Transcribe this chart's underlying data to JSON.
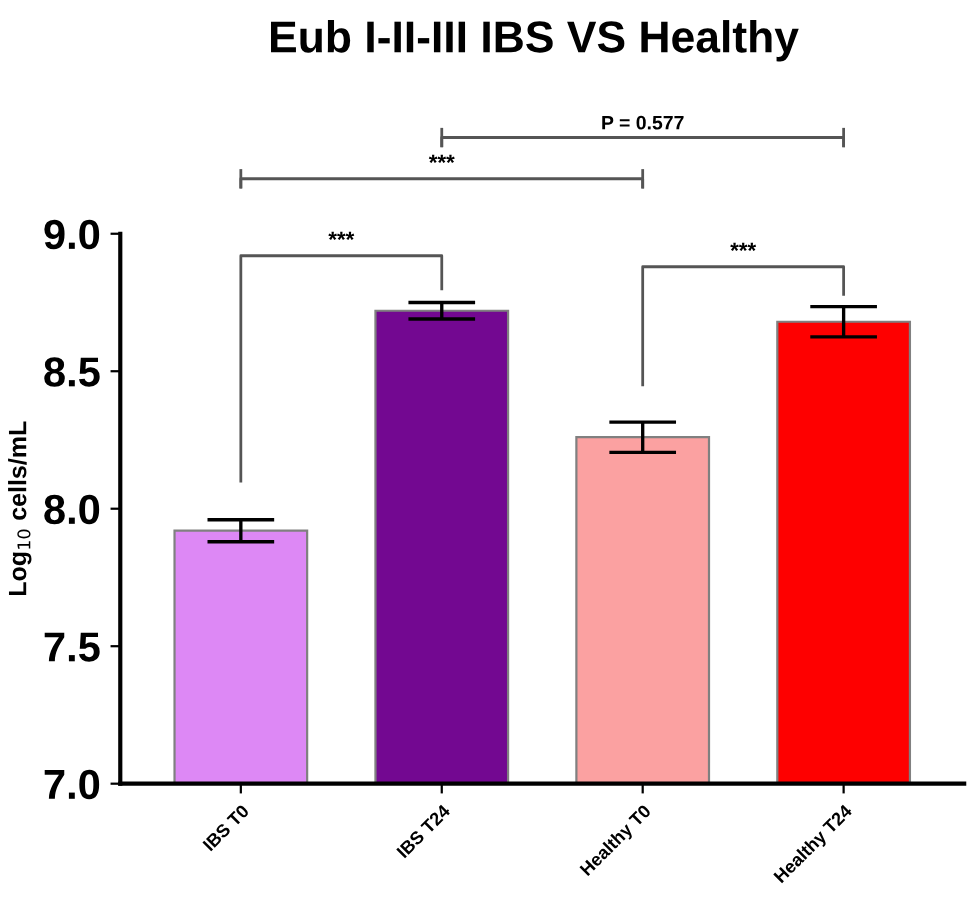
{
  "chart_data": {
    "type": "bar",
    "title": "Eub I-II-III IBS VS Healthy",
    "ylabel": "Log$_{10}$ cells/mL",
    "categories": [
      "IBS T0",
      "IBS T24",
      "Healthy T0",
      "Healthy T24"
    ],
    "values": [
      7.92,
      8.72,
      8.26,
      8.68
    ],
    "errors": [
      0.04,
      0.03,
      0.055,
      0.055
    ],
    "colors": [
      "#dd88f5",
      "#730891",
      "#fba1a1",
      "#fe0000"
    ],
    "ylim": [
      7.0,
      9.0
    ],
    "yticks": [
      {
        "value": 7.0,
        "label": "7.0"
      },
      {
        "value": 7.5,
        "label": "7.5"
      },
      {
        "value": 8.0,
        "label": "8.0"
      },
      {
        "value": 8.5,
        "label": "8.5"
      },
      {
        "value": 9.0,
        "label": "9.0"
      }
    ],
    "grid": false,
    "annotations": [
      "P = 0.577",
      "***",
      "***",
      "***"
    ]
  }
}
